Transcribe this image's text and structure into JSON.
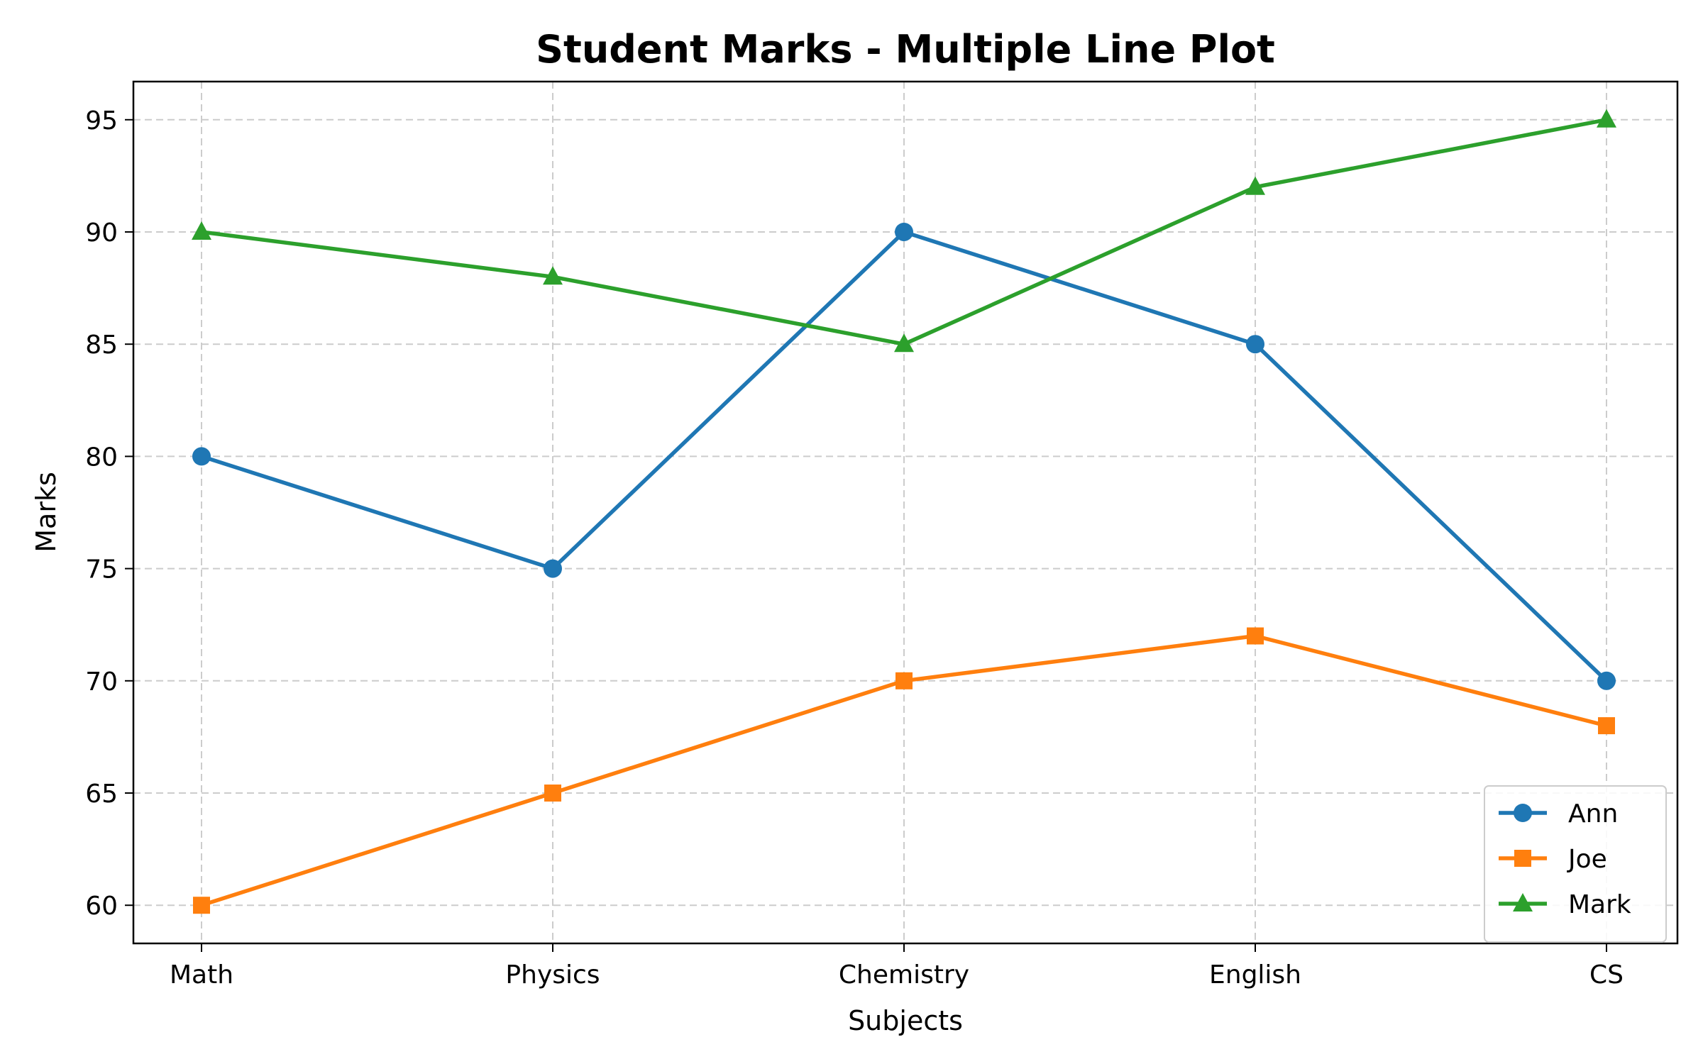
{
  "chart_data": {
    "type": "line",
    "title": "Student Marks - Multiple Line Plot",
    "xlabel": "Subjects",
    "ylabel": "Marks",
    "categories": [
      "Math",
      "Physics",
      "Chemistry",
      "English",
      "CS"
    ],
    "ylim": [
      58.3,
      96.7
    ],
    "yticks": [
      60,
      65,
      70,
      75,
      80,
      85,
      90,
      95
    ],
    "grid": true,
    "legend_position": "lower-right",
    "series": [
      {
        "name": "Ann",
        "values": [
          80,
          75,
          90,
          85,
          70
        ],
        "color": "#1f77b4",
        "marker": "circle"
      },
      {
        "name": "Joe",
        "values": [
          60,
          65,
          70,
          72,
          68
        ],
        "color": "#ff7f0e",
        "marker": "square"
      },
      {
        "name": "Mark",
        "values": [
          90,
          88,
          85,
          92,
          95
        ],
        "color": "#2ca02c",
        "marker": "triangle"
      }
    ]
  }
}
